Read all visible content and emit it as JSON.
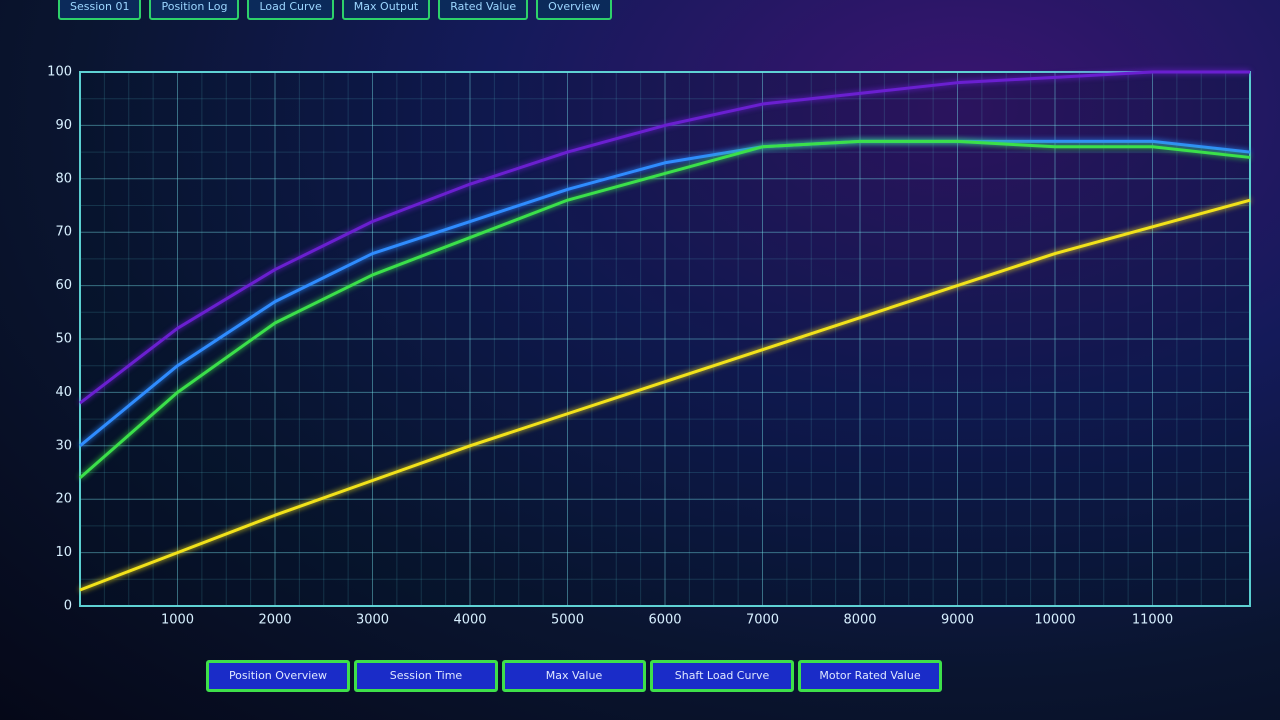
{
  "tabs": [
    "Session 01",
    "Position Log",
    "Load Curve",
    "Max Output",
    "Rated Value",
    "Overview"
  ],
  "chart_data": {
    "type": "line",
    "x": [
      0,
      1000,
      2000,
      3000,
      4000,
      5000,
      6000,
      7000,
      8000,
      9000,
      10000,
      11000,
      12000
    ],
    "xlim": [
      0,
      12000
    ],
    "xticks": [
      1000,
      2000,
      3000,
      4000,
      5000,
      6000,
      7000,
      8000,
      9000,
      10000,
      11000
    ],
    "ylim": [
      0,
      100
    ],
    "yticks": [
      0,
      10,
      20,
      30,
      40,
      50,
      60,
      70,
      80,
      90,
      100
    ],
    "grid": true,
    "series": [
      {
        "color": "#6a1fd0",
        "values": [
          38,
          52,
          63,
          72,
          79,
          85,
          90,
          94,
          96,
          98,
          99,
          100,
          100
        ]
      },
      {
        "color": "#2f8cff",
        "values": [
          30,
          45,
          57,
          66,
          72,
          78,
          83,
          86,
          87,
          87,
          87,
          87,
          85
        ]
      },
      {
        "color": "#3be04a",
        "values": [
          24,
          40,
          53,
          62,
          69,
          76,
          81,
          86,
          87,
          87,
          86,
          86,
          84
        ]
      },
      {
        "color": "#f2e21a",
        "values": [
          3,
          10,
          17,
          23.5,
          30,
          36,
          42,
          48,
          54,
          60,
          66,
          71,
          76
        ]
      }
    ]
  },
  "buttons": [
    "Position Overview",
    "Session Time",
    "Max Value",
    "Shaft Load Curve",
    "Motor Rated Value"
  ]
}
